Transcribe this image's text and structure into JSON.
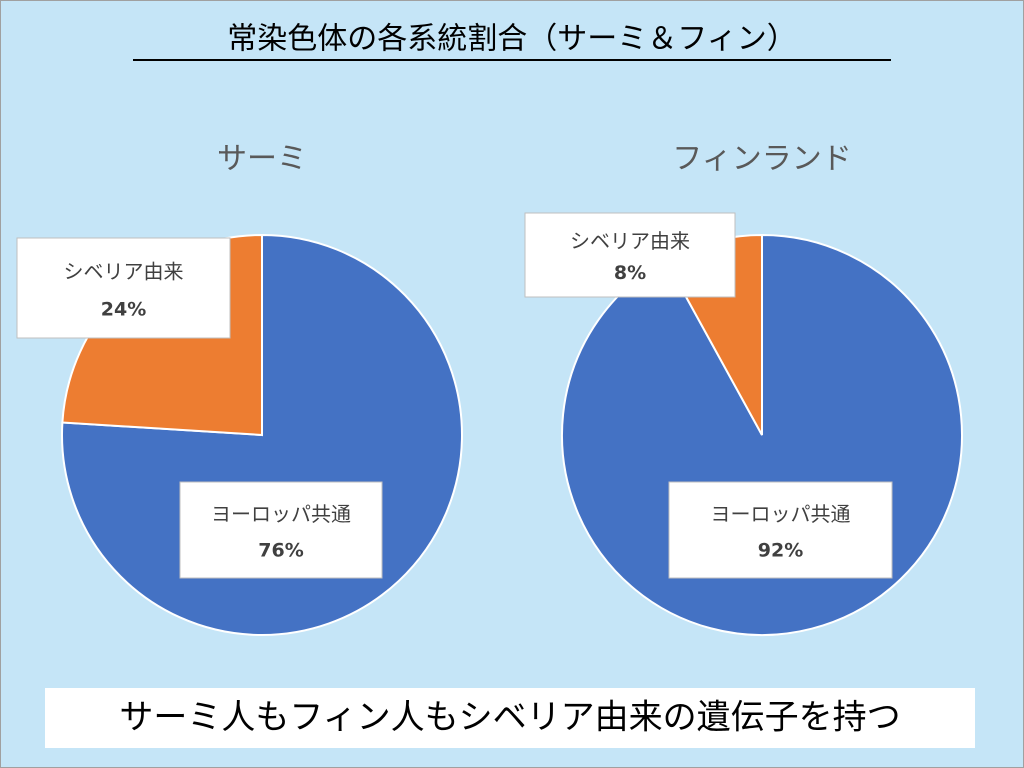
{
  "title": "常染色体の各系統割合（サーミ＆フィン）",
  "caption": "サーミ人もフィン人もシベリア由来の遺伝子を持つ",
  "chart_data": [
    {
      "type": "pie",
      "title": "サーミ",
      "categories": [
        "ヨーロッパ共通",
        "シベリア由来"
      ],
      "values": [
        76,
        24
      ],
      "value_labels": [
        "76%",
        "24%"
      ],
      "colors": [
        "#4472c4",
        "#ed7d31"
      ]
    },
    {
      "type": "pie",
      "title": "フィンランド",
      "categories": [
        "ヨーロッパ共通",
        "シベリア由来"
      ],
      "values": [
        92,
        8
      ],
      "value_labels": [
        "92%",
        "8%"
      ],
      "colors": [
        "#4472c4",
        "#ed7d31"
      ]
    }
  ]
}
